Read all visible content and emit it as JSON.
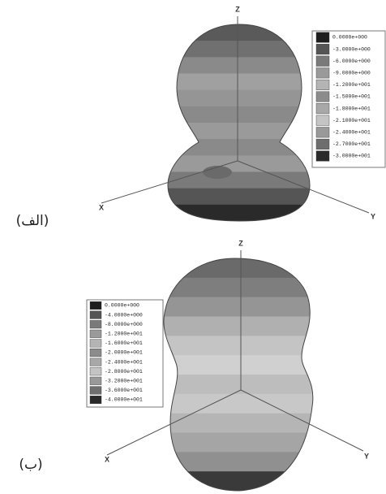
{
  "panels": [
    {
      "label": "(الف)",
      "axes": {
        "x": "X",
        "y": "Y",
        "z": "Z"
      },
      "legend": [
        "0.0000e+000",
        "-3.0000e+000",
        "-6.0000e+000",
        "-9.0000e+000",
        "-1.2000e+001",
        "-1.5000e+001",
        "-1.8000e+001",
        "-2.1000e+001",
        "-2.4000e+001",
        "-2.7000e+001",
        "-3.0000e+001"
      ]
    },
    {
      "label": "(ب)",
      "axes": {
        "x": "X",
        "y": "Y",
        "z": "Z"
      },
      "legend": [
        "0.0000e+000",
        "-4.0000e+000",
        "-8.0000e+000",
        "-1.2000e+001",
        "-1.6000e+001",
        "-2.0000e+001",
        "-2.4000e+001",
        "-2.8000e+001",
        "-3.2000e+001",
        "-3.6000e+001",
        "-4.0000e+001"
      ]
    }
  ]
}
